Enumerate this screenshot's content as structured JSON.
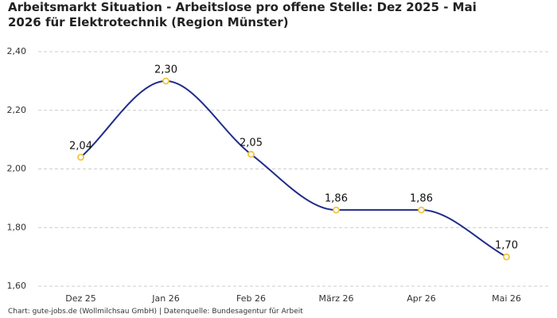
{
  "chart_data": {
    "type": "line",
    "title": "Arbeitsmarkt Situation - Arbeitslose pro offene Stelle: Dez 2025 - Mai 2026 für Elektrotechnik (Region Münster)",
    "source": "Chart: gute-jobs.de (Wollmilchsau GmbH) | Datenquelle: Bundesagentur für Arbeit",
    "categories": [
      "Dez 25",
      "Jan 26",
      "Feb 26",
      "März 26",
      "Apr 26",
      "Mai 26"
    ],
    "values": [
      2.04,
      2.3,
      2.05,
      1.86,
      1.86,
      1.7
    ],
    "value_labels": [
      "2,04",
      "2,30",
      "2,05",
      "1,86",
      "1,86",
      "1,70"
    ],
    "color": "#1f2d8a",
    "marker_color": "#f2c53d",
    "ylim": [
      1.6,
      2.4
    ],
    "yticks": [
      {
        "value": 1.6,
        "label": "1,60"
      },
      {
        "value": 1.8,
        "label": "1,80"
      },
      {
        "value": 2.0,
        "label": "2,00"
      },
      {
        "value": 2.2,
        "label": "2,20"
      },
      {
        "value": 2.4,
        "label": "2,40"
      }
    ],
    "grid": true
  }
}
